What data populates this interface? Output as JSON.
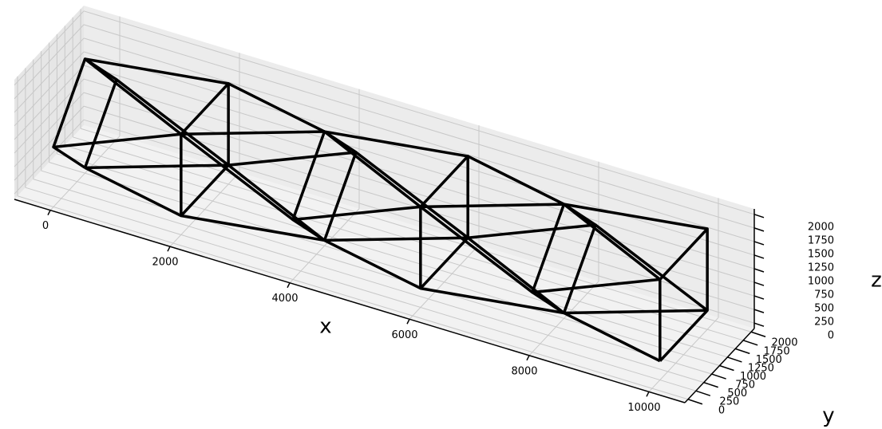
{
  "chart_data": {
    "type": "line3d",
    "xlabel": "x",
    "ylabel": "y",
    "zlabel": "z",
    "xlim": [
      -600,
      10600
    ],
    "ylim": [
      -100,
      2100
    ],
    "zlim": [
      -100,
      2100
    ],
    "xticks": [
      0,
      2000,
      4000,
      6000,
      8000,
      10000
    ],
    "yticks": [
      0,
      250,
      500,
      750,
      1000,
      1250,
      1500,
      1750,
      2000
    ],
    "zticks": [
      0,
      250,
      500,
      750,
      1000,
      1250,
      1500,
      1750,
      2000
    ],
    "grid": true,
    "color": "#000000",
    "series": [
      {
        "x": [
          0,
          0,
          0,
          0,
          0
        ],
        "y": [
          1000,
          2000,
          1000,
          0,
          1000
        ],
        "z": [
          0,
          1000,
          2000,
          1000,
          0
        ]
      },
      {
        "x": [
          2000,
          2000,
          2000,
          2000,
          2000
        ],
        "y": [
          250,
          1750,
          1750,
          250,
          250
        ],
        "z": [
          250,
          250,
          1750,
          1750,
          250
        ]
      },
      {
        "x": [
          4000,
          4000,
          4000,
          4000,
          4000
        ],
        "y": [
          1000,
          2000,
          1000,
          0,
          1000
        ],
        "z": [
          0,
          1000,
          2000,
          1000,
          0
        ]
      },
      {
        "x": [
          6000,
          6000,
          6000,
          6000,
          6000
        ],
        "y": [
          250,
          1750,
          1750,
          250,
          250
        ],
        "z": [
          250,
          250,
          1750,
          1750,
          250
        ]
      },
      {
        "x": [
          8000,
          8000,
          8000,
          8000,
          8000
        ],
        "y": [
          1000,
          2000,
          1000,
          0,
          1000
        ],
        "z": [
          0,
          1000,
          2000,
          1000,
          0
        ]
      },
      {
        "x": [
          10000,
          10000,
          10000,
          10000,
          10000
        ],
        "y": [
          250,
          1750,
          1750,
          250,
          250
        ],
        "z": [
          250,
          250,
          1750,
          1750,
          250
        ]
      },
      {
        "x": [
          0,
          2000,
          4000,
          6000,
          8000,
          10000
        ],
        "y": [
          1000,
          250,
          1000,
          250,
          1000,
          250
        ],
        "z": [
          0,
          250,
          0,
          250,
          0,
          250
        ]
      },
      {
        "x": [
          0,
          2000,
          4000,
          6000,
          8000,
          10000
        ],
        "y": [
          2000,
          1750,
          2000,
          1750,
          2000,
          1750
        ],
        "z": [
          1000,
          250,
          1000,
          250,
          1000,
          250
        ]
      },
      {
        "x": [
          0,
          2000,
          4000,
          6000,
          8000,
          10000
        ],
        "y": [
          1000,
          1750,
          1000,
          1750,
          1000,
          1750
        ],
        "z": [
          2000,
          1750,
          2000,
          1750,
          2000,
          1750
        ]
      },
      {
        "x": [
          0,
          2000,
          4000,
          6000,
          8000,
          10000
        ],
        "y": [
          0,
          250,
          0,
          250,
          0,
          250
        ],
        "z": [
          1000,
          1750,
          1000,
          1750,
          1000,
          1750
        ]
      },
      {
        "x": [
          0,
          2000,
          4000,
          6000,
          8000,
          10000
        ],
        "y": [
          1000,
          1750,
          1000,
          1750,
          1000,
          1750
        ],
        "z": [
          0,
          250,
          0,
          250,
          0,
          250
        ]
      },
      {
        "x": [
          0,
          2000,
          4000,
          6000,
          8000,
          10000
        ],
        "y": [
          1000,
          250,
          1000,
          250,
          1000,
          250
        ],
        "z": [
          2000,
          1750,
          2000,
          1750,
          2000,
          1750
        ]
      }
    ]
  }
}
